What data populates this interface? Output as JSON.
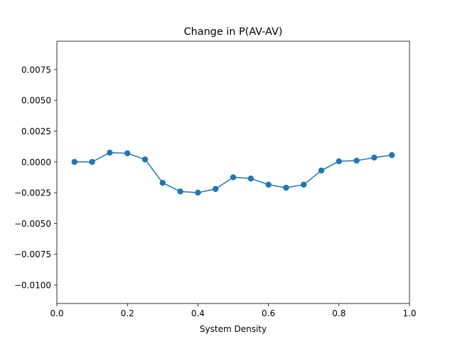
{
  "chart_data": {
    "type": "line",
    "title": "Change in P(AV-AV)",
    "xlabel": "System Density",
    "ylabel": "",
    "xlim": [
      0.0,
      1.0
    ],
    "ylim": [
      -0.0115,
      0.0098
    ],
    "xticks": [
      0.0,
      0.2,
      0.4,
      0.6,
      0.8,
      1.0
    ],
    "xtick_labels": [
      "0.0",
      "0.2",
      "0.4",
      "0.6",
      "0.8",
      "1.0"
    ],
    "yticks": [
      0.0075,
      0.005,
      0.0025,
      0.0,
      -0.0025,
      -0.005,
      -0.0075,
      -0.01
    ],
    "ytick_labels": [
      "0.0075",
      "0.0050",
      "0.0025",
      "0.0000",
      "−0.0025",
      "−0.0050",
      "−0.0075",
      "−0.0100"
    ],
    "grid": false,
    "color": "#1f77b4",
    "series": [
      {
        "x": [
          0.05,
          0.1,
          0.15,
          0.2,
          0.25,
          0.3,
          0.35,
          0.4,
          0.45,
          0.5,
          0.55,
          0.6,
          0.65,
          0.7,
          0.75,
          0.8,
          0.85,
          0.9,
          0.95
        ],
        "values": [
          0.0,
          0.0,
          0.00075,
          0.0007,
          0.0002,
          -0.0017,
          -0.0024,
          -0.0025,
          -0.0022,
          -0.00125,
          -0.00135,
          -0.00185,
          -0.0021,
          -0.00185,
          -0.0007,
          5e-05,
          0.0001,
          0.00035,
          0.00055
        ]
      }
    ]
  }
}
